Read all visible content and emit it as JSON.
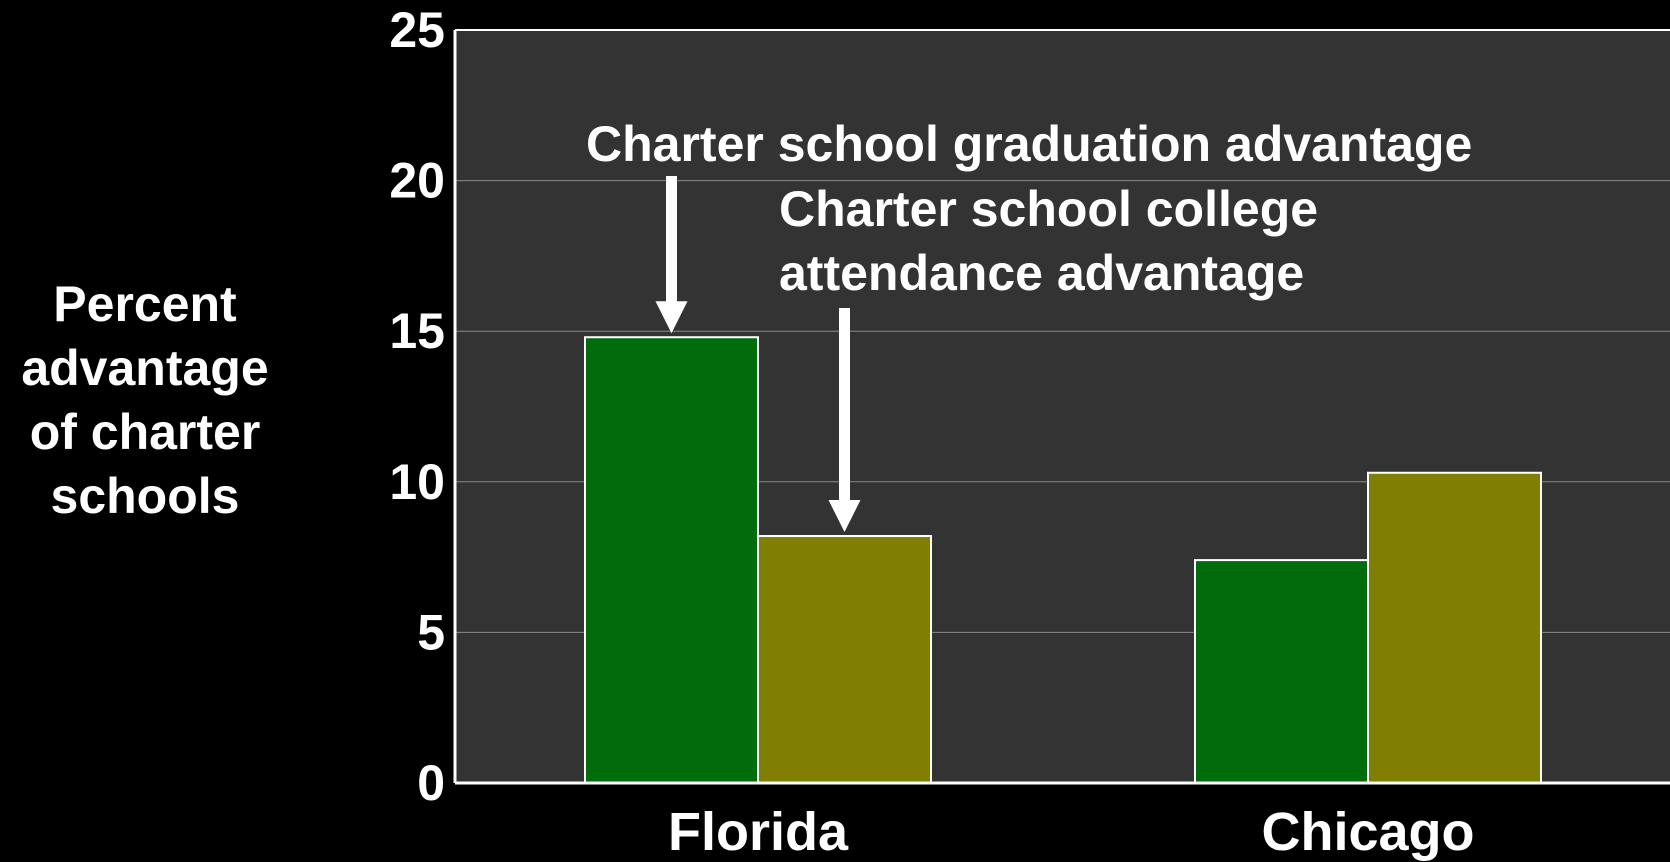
{
  "chart_data": {
    "type": "bar",
    "categories": [
      "Florida",
      "Chicago"
    ],
    "series": [
      {
        "values": [
          14.8,
          7.4
        ],
        "color": "#026B0C"
      },
      {
        "values": [
          8.2,
          10.3
        ],
        "color": "#807F01"
      }
    ],
    "ylabel": "Percent\nadvantage\nof charter\nschools",
    "xlabel": "",
    "ylim": [
      0,
      25
    ],
    "yticks": [
      0,
      5,
      10,
      15,
      20,
      25
    ],
    "grid": true,
    "annotations": [
      {
        "text": "Charter school graduation advantage",
        "target_category": "Florida",
        "target_series": 0
      },
      {
        "text": "Charter school college\nattendance advantage",
        "target_category": "Florida",
        "target_series": 1
      }
    ],
    "colors": {
      "background": "#000000",
      "plot_area": "#333333",
      "grid": "#8A8A8A",
      "axis": "#FFFFFF"
    }
  }
}
